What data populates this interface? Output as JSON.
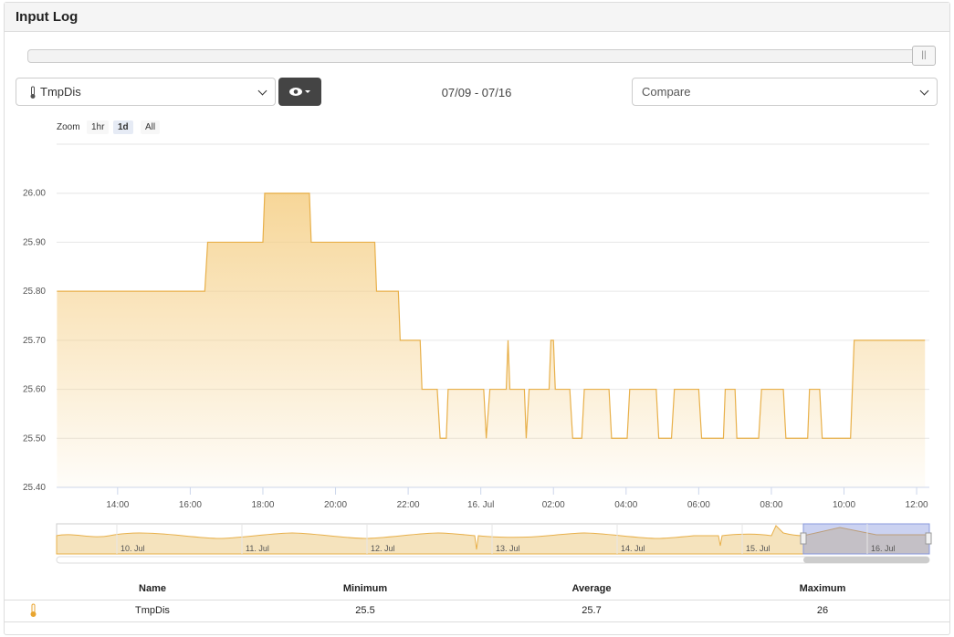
{
  "header": {
    "title": "Input Log"
  },
  "controls": {
    "sensor": "TmpDis",
    "date_range": "07/09 - 07/16",
    "compare": "Compare"
  },
  "zoom": {
    "label": "Zoom",
    "buttons": [
      "1hr",
      "1d",
      "All"
    ]
  },
  "chart_data": {
    "type": "area",
    "color": "#e8b04a",
    "grid": true,
    "x": [
      12.33,
      16.4,
      16.48,
      18.0,
      18.05,
      19.28,
      19.33,
      21.08,
      21.13,
      21.73,
      21.78,
      22.33,
      22.38,
      22.8,
      22.88,
      23.05,
      23.1,
      24.08,
      24.15,
      24.25,
      24.7,
      24.75,
      24.8,
      25.2,
      25.25,
      25.33,
      25.88,
      25.93,
      26.0,
      26.05,
      26.45,
      26.53,
      26.78,
      26.85,
      27.53,
      27.6,
      28.03,
      28.1,
      28.83,
      28.9,
      29.25,
      29.33,
      30.0,
      30.08,
      30.68,
      30.73,
      31.0,
      31.05,
      31.65,
      31.73,
      32.33,
      32.4,
      33.0,
      33.05,
      33.33,
      33.4,
      34.18,
      34.28,
      36.23
    ],
    "values": [
      25.8,
      25.8,
      25.9,
      25.9,
      26.0,
      26.0,
      25.9,
      25.9,
      25.8,
      25.8,
      25.7,
      25.7,
      25.6,
      25.6,
      25.5,
      25.5,
      25.6,
      25.6,
      25.5,
      25.6,
      25.6,
      25.7,
      25.6,
      25.6,
      25.5,
      25.6,
      25.6,
      25.7,
      25.7,
      25.6,
      25.6,
      25.5,
      25.5,
      25.6,
      25.6,
      25.5,
      25.5,
      25.6,
      25.6,
      25.5,
      25.5,
      25.6,
      25.6,
      25.5,
      25.5,
      25.6,
      25.6,
      25.5,
      25.5,
      25.6,
      25.6,
      25.5,
      25.5,
      25.6,
      25.6,
      25.5,
      25.5,
      25.7,
      25.7
    ],
    "xlim": [
      12.32,
      36.35
    ],
    "ylim": [
      25.4,
      26.1
    ],
    "xticks": [
      {
        "value": 14,
        "label": "14:00"
      },
      {
        "value": 16,
        "label": "16:00"
      },
      {
        "value": 18,
        "label": "18:00"
      },
      {
        "value": 20,
        "label": "20:00"
      },
      {
        "value": 22,
        "label": "22:00"
      },
      {
        "value": 24,
        "label": "16. Jul"
      },
      {
        "value": 26,
        "label": "02:00"
      },
      {
        "value": 28,
        "label": "04:00"
      },
      {
        "value": 30,
        "label": "06:00"
      },
      {
        "value": 32,
        "label": "08:00"
      },
      {
        "value": 34,
        "label": "10:00"
      },
      {
        "value": 36,
        "label": "12:00"
      }
    ],
    "yticks": [
      {
        "value": 25.4,
        "label": "25.40"
      },
      {
        "value": 25.5,
        "label": "25.50"
      },
      {
        "value": 25.6,
        "label": "25.60"
      },
      {
        "value": 25.7,
        "label": "25.70"
      },
      {
        "value": 25.8,
        "label": "25.80"
      },
      {
        "value": 25.9,
        "label": "25.90"
      },
      {
        "value": 26,
        "label": "26.00"
      }
    ]
  },
  "navigator": {
    "labels": [
      "10. Jul",
      "11. Jul",
      "12. Jul",
      "13. Jul",
      "14. Jul",
      "15. Jul",
      "16. Jul"
    ]
  },
  "table": {
    "header": [
      "Name",
      "Minimum",
      "Average",
      "Maximum"
    ],
    "rows": [
      [
        "TmpDis",
        25.5,
        25.7,
        26
      ]
    ]
  }
}
